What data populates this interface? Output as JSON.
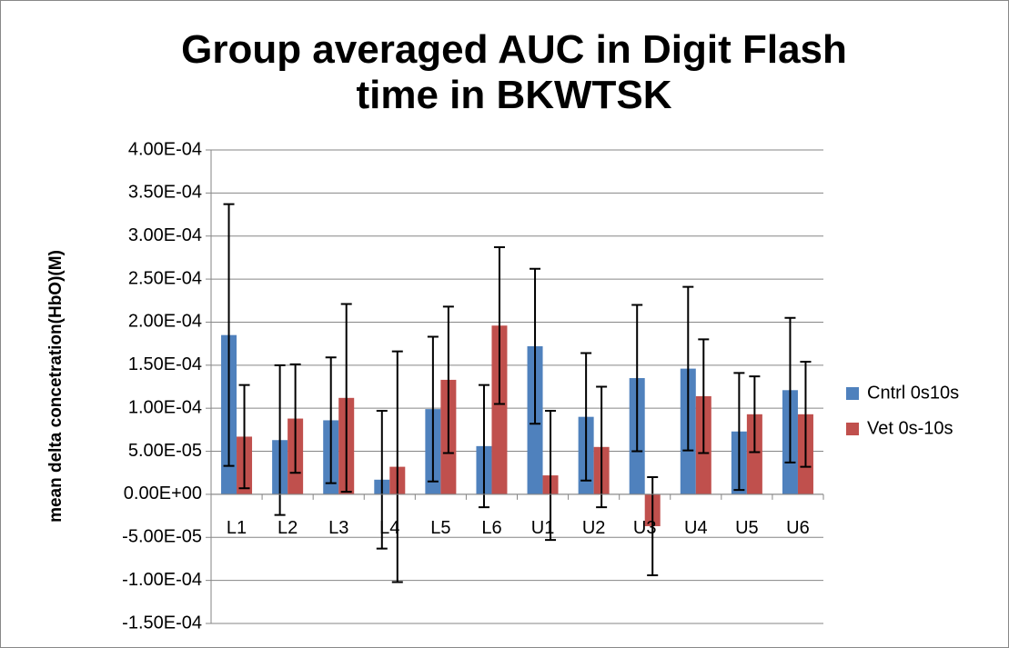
{
  "chart_data": {
    "type": "bar",
    "title": "Group averaged AUC in Digit Flash time in BKWTSK",
    "y_label": "mean delta concetration(HbO)(M)",
    "categories": [
      "L1",
      "L2",
      "L3",
      "L4",
      "L5",
      "L6",
      "U1",
      "U2",
      "U3",
      "U4",
      "U5",
      "U6"
    ],
    "series": [
      {
        "name": "Cntrl 0s10s",
        "color": "#4f81bd",
        "values": [
          0.000185,
          6.3e-05,
          8.6e-05,
          1.7e-05,
          9.9e-05,
          5.6e-05,
          0.000172,
          9e-05,
          0.000135,
          0.000146,
          7.3e-05,
          0.000121
        ],
        "errors": [
          0.000152,
          8.7e-05,
          7.3e-05,
          8e-05,
          8.4e-05,
          7.1e-05,
          9e-05,
          7.4e-05,
          8.5e-05,
          9.5e-05,
          6.8e-05,
          8.4e-05
        ]
      },
      {
        "name": "Vet 0s-10s",
        "color": "#c0504d",
        "values": [
          6.7e-05,
          8.8e-05,
          0.000112,
          3.2e-05,
          0.000133,
          0.000196,
          2.2e-05,
          5.5e-05,
          -3.7e-05,
          0.000114,
          9.3e-05,
          9.3e-05
        ],
        "errors": [
          6e-05,
          6.3e-05,
          0.000109,
          0.000134,
          8.5e-05,
          9.1e-05,
          7.5e-05,
          7e-05,
          5.7e-05,
          6.6e-05,
          4.4e-05,
          6.1e-05
        ]
      }
    ],
    "ylim": [
      -0.00015,
      0.0004
    ],
    "yticks": [
      {
        "value": -0.00015,
        "label": "-1.50E-04"
      },
      {
        "value": -0.0001,
        "label": "-1.00E-04"
      },
      {
        "value": -5e-05,
        "label": "-5.00E-05"
      },
      {
        "value": 0,
        "label": "0.00E+00"
      },
      {
        "value": 5e-05,
        "label": "5.00E-05"
      },
      {
        "value": 0.0001,
        "label": "1.00E-04"
      },
      {
        "value": 0.00015,
        "label": "1.50E-04"
      },
      {
        "value": 0.0002,
        "label": "2.00E-04"
      },
      {
        "value": 0.00025,
        "label": "2.50E-04"
      },
      {
        "value": 0.0003,
        "label": "3.00E-04"
      },
      {
        "value": 0.00035,
        "label": "3.50E-04"
      },
      {
        "value": 0.0004,
        "label": "4.00E-04"
      }
    ],
    "grid": true,
    "legend": "right"
  }
}
